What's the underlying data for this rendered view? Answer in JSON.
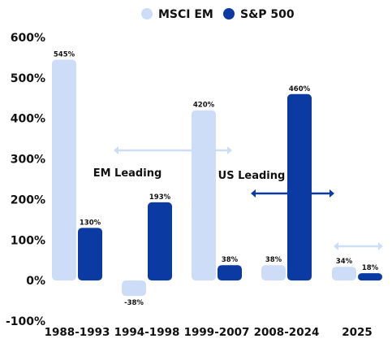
{
  "chart_data": {
    "type": "bar",
    "categories": [
      "1988-1993",
      "1994-1998",
      "1999-2007",
      "2008-2024",
      "2025"
    ],
    "series": [
      {
        "name": "MSCI EM",
        "color": "#cddcf7",
        "values": [
          545,
          -38,
          420,
          38,
          34
        ],
        "labels": [
          "545%",
          "-38%",
          "420%",
          "38%",
          "34%"
        ]
      },
      {
        "name": "S&P 500",
        "color": "#0b3aa3",
        "values": [
          130,
          193,
          38,
          460,
          18
        ],
        "labels": [
          "130%",
          "193%",
          "38%",
          "460%",
          "18%"
        ]
      }
    ],
    "ylim": [
      -100,
      600
    ],
    "yticks": [
      -100,
      0,
      100,
      200,
      300,
      400,
      500,
      600
    ],
    "ytick_labels": [
      "-100%",
      "0%",
      "100%",
      "200%",
      "300%",
      "400%",
      "500%",
      "600%"
    ],
    "legend_position": "top-center",
    "grid": false,
    "annotations": [
      {
        "text": "EM Leading",
        "arrow_color": "#cddcf7"
      },
      {
        "text": "US Leading",
        "arrow_color": "#0b3aa3"
      },
      {
        "text": "",
        "arrow_color": "#cddcf7"
      }
    ]
  }
}
